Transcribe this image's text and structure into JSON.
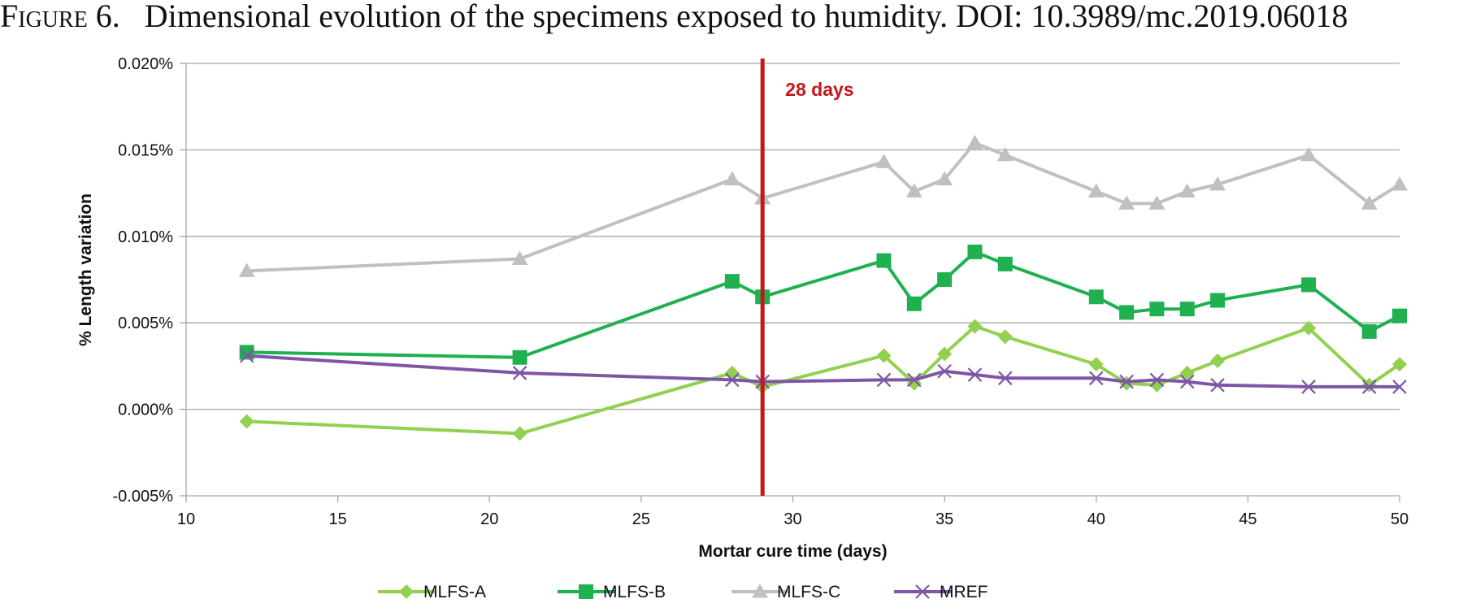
{
  "figure": {
    "label": "Figure 6.",
    "caption": "Dimensional evolution of the specimens exposed to humidity. DOI: 10.3989/mc.2019.06018"
  },
  "chart_data": {
    "type": "line",
    "title": "",
    "xlabel": "Mortar cure time (days)",
    "ylabel": "% Length  variation",
    "xlim": [
      10,
      50
    ],
    "ylim": [
      -0.005,
      0.02
    ],
    "x_ticks": [
      10,
      15,
      20,
      25,
      30,
      35,
      40,
      45,
      50
    ],
    "y_ticks": [
      -0.005,
      0,
      0.005,
      0.01,
      0.015,
      0.02
    ],
    "x_tick_labels": [
      "10",
      "15",
      "20",
      "25",
      "30",
      "35",
      "40",
      "45",
      "50"
    ],
    "y_tick_labels": [
      "-0.005%",
      "0.000%",
      "0.005%",
      "0.010%",
      "0.015%",
      "0.020%"
    ],
    "grid": "horizontal",
    "legend_position": "bottom",
    "annotation": {
      "text": "28 days",
      "x": 29,
      "color": "#c0191c"
    },
    "series": [
      {
        "name": "MLFS-A",
        "color": "#92d050",
        "marker": "diamond",
        "points": [
          [
            12,
            -0.0007
          ],
          [
            21,
            -0.0014
          ],
          [
            28,
            0.0021
          ],
          [
            29,
            0.0013
          ],
          [
            33,
            0.0031
          ],
          [
            34,
            0.0015
          ],
          [
            35,
            0.0032
          ],
          [
            36,
            0.0048
          ],
          [
            37,
            0.0042
          ],
          [
            40,
            0.0026
          ],
          [
            41,
            0.0015
          ],
          [
            42,
            0.0014
          ],
          [
            43,
            0.0021
          ],
          [
            44,
            0.0028
          ],
          [
            47,
            0.0047
          ],
          [
            49,
            0.0014
          ],
          [
            50,
            0.0026
          ]
        ]
      },
      {
        "name": "MLFS-B",
        "color": "#1fb050",
        "marker": "square",
        "points": [
          [
            12,
            0.0033
          ],
          [
            21,
            0.003
          ],
          [
            28,
            0.0074
          ],
          [
            29,
            0.0065
          ],
          [
            33,
            0.0086
          ],
          [
            34,
            0.0061
          ],
          [
            35,
            0.0075
          ],
          [
            36,
            0.0091
          ],
          [
            37,
            0.0084
          ],
          [
            40,
            0.0065
          ],
          [
            41,
            0.0056
          ],
          [
            42,
            0.0058
          ],
          [
            43,
            0.0058
          ],
          [
            44,
            0.0063
          ],
          [
            47,
            0.0072
          ],
          [
            49,
            0.0045
          ],
          [
            50,
            0.0054
          ]
        ]
      },
      {
        "name": "MLFS-C",
        "color": "#c0c0c0",
        "marker": "triangle",
        "points": [
          [
            12,
            0.008
          ],
          [
            21,
            0.0087
          ],
          [
            28,
            0.0133
          ],
          [
            29,
            0.0122
          ],
          [
            33,
            0.0143
          ],
          [
            34,
            0.0126
          ],
          [
            35,
            0.0133
          ],
          [
            36,
            0.0154
          ],
          [
            37,
            0.0147
          ],
          [
            40,
            0.0126
          ],
          [
            41,
            0.0119
          ],
          [
            42,
            0.0119
          ],
          [
            43,
            0.0126
          ],
          [
            44,
            0.013
          ],
          [
            47,
            0.0147
          ],
          [
            49,
            0.0119
          ],
          [
            50,
            0.013
          ]
        ]
      },
      {
        "name": "MREF",
        "color": "#7f56a5",
        "marker": "x",
        "points": [
          [
            12,
            0.0031
          ],
          [
            21,
            0.0021
          ],
          [
            28,
            0.0017
          ],
          [
            29,
            0.0016
          ],
          [
            33,
            0.0017
          ],
          [
            34,
            0.0017
          ],
          [
            35,
            0.0022
          ],
          [
            36,
            0.002
          ],
          [
            37,
            0.0018
          ],
          [
            40,
            0.0018
          ],
          [
            41,
            0.0016
          ],
          [
            42,
            0.0017
          ],
          [
            43,
            0.0016
          ],
          [
            44,
            0.0014
          ],
          [
            47,
            0.0013
          ],
          [
            49,
            0.0013
          ],
          [
            50,
            0.0013
          ]
        ]
      }
    ]
  }
}
